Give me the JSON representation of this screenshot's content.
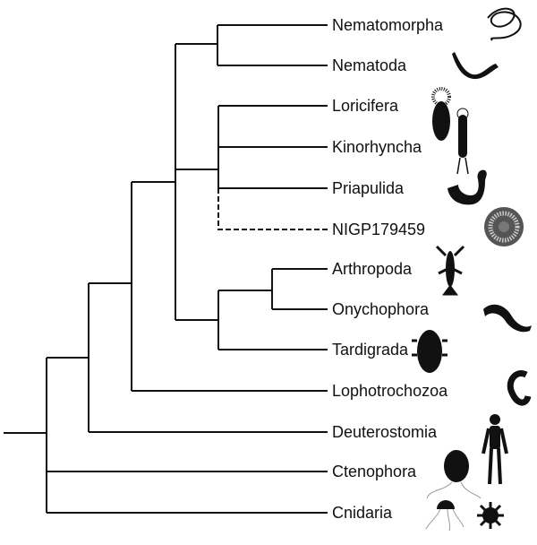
{
  "tree": {
    "taxa": [
      {
        "id": "nematomorpha",
        "label": "Nematomorpha",
        "icon": "hairworm-silhouette"
      },
      {
        "id": "nematoda",
        "label": "Nematoda",
        "icon": "roundworm-silhouette"
      },
      {
        "id": "loricifera",
        "label": "Loricifera",
        "icon": "loriciferan-silhouette"
      },
      {
        "id": "kinorhyncha",
        "label": "Kinorhyncha",
        "icon": "kinorhynch-silhouette"
      },
      {
        "id": "priapulida",
        "label": "Priapulida",
        "icon": "priapulid-silhouette"
      },
      {
        "id": "nigp",
        "label": "NIGP179459",
        "icon": "fossil-disc-image",
        "dashed": true
      },
      {
        "id": "arthropoda",
        "label": "Arthropoda",
        "icon": "lobster-silhouette"
      },
      {
        "id": "onychophora",
        "label": "Onychophora",
        "icon": "velvet-worm-silhouette"
      },
      {
        "id": "tardigrada",
        "label": "Tardigrada",
        "icon": "tardigrade-silhouette"
      },
      {
        "id": "lophotrochozoa",
        "label": "Lophotrochozoa",
        "icon": "annelid-silhouette"
      },
      {
        "id": "deuterostomia",
        "label": "Deuterostomia",
        "icon": "human-silhouette"
      },
      {
        "id": "ctenophora",
        "label": "Ctenophora",
        "icon": "comb-jelly-silhouette"
      },
      {
        "id": "cnidaria",
        "label": "Cnidaria",
        "icon": "jellyfish-silhouette"
      }
    ],
    "topology": "((((((Nematomorpha,Nematoda),(Loricifera,Kinorhyncha,Priapulida,NIGP179459),((Arthropoda,Onychophora),Tardigrada)),Lophotrochozoa),Deuterostomia),Ctenophora,Cnidaria)"
  }
}
